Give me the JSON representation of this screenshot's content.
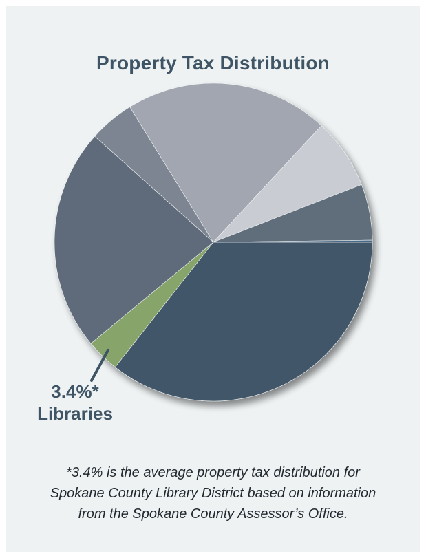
{
  "chart_data": {
    "type": "pie",
    "title": "Property Tax Distribution",
    "slices": [
      {
        "name": "",
        "value": 35.6,
        "color": "#42566a"
      },
      {
        "name": "Libraries",
        "value": 3.4,
        "color": "#87a56b"
      },
      {
        "name": "",
        "value": 22.6,
        "color": "#5e6b7a"
      },
      {
        "name": "",
        "value": 4.6,
        "color": "#7b8591"
      },
      {
        "name": "",
        "value": 20.7,
        "color": "#a1a6b0"
      },
      {
        "name": "",
        "value": 7.2,
        "color": "#c9ccd3"
      },
      {
        "name": "",
        "value": 5.7,
        "color": "#616e7c"
      },
      {
        "name": "",
        "value": 0.2,
        "color": "#4a6a86"
      }
    ],
    "callout": {
      "value_label": "3.4%*",
      "name_label": "Libraries"
    }
  },
  "footnote": {
    "line1": "*3.4% is the average property tax distribution for",
    "line2": "Spokane County Library District based on information",
    "line3": "from the Spokane County Assessor’s Office."
  },
  "colors": {
    "background": "#eef2f3",
    "text": "#3f5566",
    "shadow": "#8f969b"
  }
}
